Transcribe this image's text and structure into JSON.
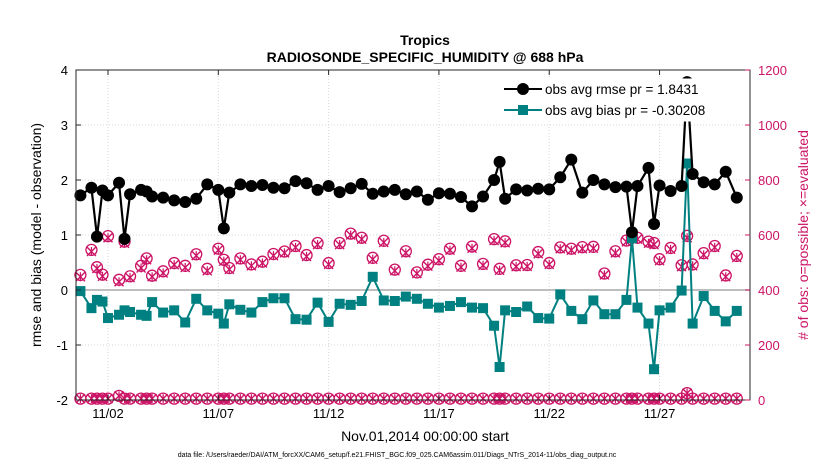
{
  "chart_data": {
    "type": "line",
    "title": "Tropics",
    "subtitle": "RADIOSONDE_SPECIFIC_HUMIDITY @ 688 hPa",
    "xlabel": "Nov.01,2014 00:00:00 start",
    "ylabel_left": "rmse and bias (model - observation)",
    "ylabel_right": "# of obs: o=possible; ×=evaluated",
    "footer": "data file: /Users/raeder/DAI/ATM_forcXX/CAM6_setup/f.e21.FHIST_BGC.f09_025.CAM6assim.011/Diags_NTrS_2014-11/obs_diag_output.nc",
    "xlim": [
      0.55,
      31.1
    ],
    "ylim_left": [
      -2,
      4
    ],
    "ylim_right": [
      0,
      1200
    ],
    "y_ticks_left": [
      -2,
      -1,
      0,
      1,
      2,
      3,
      4
    ],
    "y_ticks_right": [
      0,
      200,
      400,
      600,
      800,
      1000,
      1200
    ],
    "x_ticks": [
      2,
      7,
      12,
      17,
      22,
      27
    ],
    "x_tick_labels": [
      "11/02",
      "11/07",
      "11/12",
      "11/17",
      "11/22",
      "11/27"
    ],
    "x": [
      0.75,
      1.25,
      1.5,
      1.75,
      2.0,
      2.5,
      2.75,
      3.0,
      3.5,
      3.75,
      4.0,
      4.5,
      5.0,
      5.5,
      6.0,
      6.5,
      7.0,
      7.25,
      7.5,
      8.0,
      8.5,
      9.0,
      9.5,
      10.0,
      10.5,
      11.0,
      11.5,
      12.0,
      12.5,
      13.0,
      13.5,
      14.0,
      14.5,
      15.0,
      15.5,
      16.0,
      16.5,
      17.0,
      17.5,
      18.0,
      18.5,
      19.0,
      19.5,
      19.75,
      20.0,
      20.5,
      21.0,
      21.5,
      22.0,
      22.5,
      23.0,
      23.5,
      24.0,
      24.5,
      25.0,
      25.5,
      25.75,
      26.0,
      26.5,
      26.75,
      27.0,
      27.5,
      28.0,
      28.25,
      28.5,
      29.0,
      29.5,
      30.0,
      30.5
    ],
    "series": [
      {
        "name": "obs avg rmse",
        "legend": "obs avg rmse pr = 1.8431",
        "color": "#000000",
        "marker": "circle",
        "axis": "left",
        "values": [
          1.72,
          1.86,
          0.97,
          1.81,
          1.72,
          1.95,
          0.93,
          1.74,
          1.82,
          1.79,
          1.7,
          1.68,
          1.63,
          1.6,
          1.66,
          1.92,
          1.82,
          1.12,
          1.77,
          1.92,
          1.89,
          1.91,
          1.86,
          1.85,
          1.98,
          1.94,
          1.82,
          1.89,
          1.78,
          1.85,
          1.93,
          1.75,
          1.79,
          1.82,
          1.74,
          1.79,
          1.64,
          1.76,
          1.75,
          1.69,
          1.52,
          1.7,
          2.0,
          2.33,
          1.66,
          1.83,
          1.81,
          1.84,
          1.83,
          2.05,
          2.37,
          1.77,
          2.0,
          1.92,
          1.87,
          1.88,
          1.05,
          1.89,
          2.22,
          1.2,
          1.9,
          1.8,
          1.89,
          3.78,
          2.11,
          1.96,
          1.92,
          2.15,
          1.68
        ]
      },
      {
        "name": "obs avg bias",
        "legend": "obs avg bias pr = -0.30208",
        "color": "#008080",
        "marker": "square",
        "axis": "left",
        "values": [
          -0.02,
          -0.33,
          -0.18,
          -0.21,
          -0.51,
          -0.45,
          -0.37,
          -0.4,
          -0.45,
          -0.47,
          -0.22,
          -0.41,
          -0.37,
          -0.59,
          -0.16,
          -0.37,
          -0.43,
          -0.61,
          -0.26,
          -0.36,
          -0.41,
          -0.22,
          -0.15,
          -0.15,
          -0.53,
          -0.54,
          -0.23,
          -0.58,
          -0.25,
          -0.27,
          -0.2,
          0.24,
          -0.19,
          -0.2,
          -0.12,
          -0.16,
          -0.25,
          -0.32,
          -0.29,
          -0.22,
          -0.32,
          -0.33,
          -0.65,
          -1.4,
          -0.37,
          -0.4,
          -0.3,
          -0.51,
          -0.52,
          -0.08,
          -0.38,
          -0.53,
          -0.19,
          -0.44,
          -0.44,
          -0.18,
          0.94,
          -0.32,
          -0.61,
          -1.44,
          -0.37,
          -0.32,
          -0.01,
          2.3,
          -0.61,
          -0.11,
          -0.38,
          -0.57,
          -0.38
        ]
      },
      {
        "name": "obs possible",
        "color": "#CC1466",
        "marker": "circle",
        "axis": "right",
        "values": [
          455,
          546,
          483,
          456,
          596,
          437,
          576,
          450,
          488,
          515,
          452,
          468,
          498,
          488,
          530,
          477,
          550,
          510,
          480,
          515,
          493,
          503,
          531,
          540,
          560,
          527,
          571,
          498,
          571,
          605,
          590,
          517,
          579,
          474,
          541,
          464,
          492,
          512,
          550,
          488,
          558,
          495,
          585,
          477,
          577,
          490,
          491,
          538,
          498,
          555,
          550,
          556,
          557,
          460,
          541,
          580,
          593,
          590,
          576,
          571,
          512,
          553,
          490,
          597,
          493,
          534,
          560,
          453,
          524
        ],
        "evaluated": [
          448,
          540,
          478,
          450,
          590,
          430,
          570,
          445,
          480,
          510,
          448,
          462,
          492,
          482,
          525,
          470,
          545,
          505,
          475,
          510,
          488,
          498,
          525,
          535,
          555,
          522,
          565,
          493,
          565,
          600,
          585,
          512,
          573,
          470,
          535,
          460,
          487,
          507,
          545,
          483,
          552,
          490,
          580,
          472,
          572,
          485,
          486,
          532,
          493,
          550,
          545,
          550,
          552,
          455,
          535,
          575,
          587,
          585,
          570,
          565,
          507,
          548,
          485,
          590,
          488,
          528,
          555,
          448,
          518
        ]
      },
      {
        "name": "obs possible bottom",
        "color": "#CC1466",
        "marker": "circle",
        "axis": "right",
        "values": [
          5,
          5,
          5,
          5,
          5,
          15,
          5,
          5,
          5,
          5,
          5,
          5,
          5,
          5,
          5,
          5,
          5,
          5,
          5,
          5,
          5,
          5,
          5,
          5,
          5,
          5,
          5,
          5,
          5,
          5,
          5,
          5,
          5,
          5,
          5,
          5,
          5,
          5,
          5,
          5,
          5,
          5,
          5,
          5,
          5,
          5,
          5,
          5,
          5,
          5,
          5,
          5,
          5,
          5,
          5,
          5,
          5,
          5,
          5,
          5,
          5,
          5,
          5,
          25,
          5,
          5,
          5,
          5,
          5
        ]
      }
    ]
  }
}
